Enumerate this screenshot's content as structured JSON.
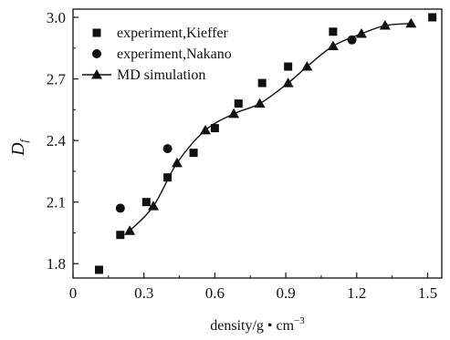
{
  "chart_data": {
    "type": "scatter",
    "xlabel": "density/g·cm⁻³",
    "xlabel_parts": {
      "main": "density/g • cm",
      "sup": "−3"
    },
    "ylabel": "Df",
    "ylabel_parts": {
      "main": "D",
      "sub": "f"
    },
    "xlim": [
      0,
      1.56
    ],
    "ylim": [
      1.73,
      3.04
    ],
    "xticks": [
      0,
      0.3,
      0.6,
      0.9,
      1.2,
      1.5
    ],
    "xtick_labels": [
      "0",
      "0.3",
      "0.6",
      "0.9",
      "1.2",
      "1.5"
    ],
    "yticks": [
      1.8,
      2.1,
      2.4,
      2.7,
      3.0
    ],
    "ytick_labels": [
      "1.8",
      "2.1",
      "2.4",
      "2.7",
      "3.0"
    ],
    "grid": false,
    "legend_position": "top-left",
    "series": [
      {
        "name": "experiment,Kieffer",
        "marker": "square",
        "line": false,
        "x": [
          0.11,
          0.2,
          0.31,
          0.4,
          0.51,
          0.6,
          0.7,
          0.8,
          0.91,
          1.1,
          1.52
        ],
        "y": [
          1.77,
          1.94,
          2.1,
          2.22,
          2.34,
          2.46,
          2.58,
          2.68,
          2.76,
          2.93,
          3.0
        ]
      },
      {
        "name": "experiment,Nakano",
        "marker": "circle",
        "line": false,
        "x": [
          0.2,
          0.4,
          1.18
        ],
        "y": [
          2.07,
          2.36,
          2.89
        ]
      },
      {
        "name": "MD simulation",
        "marker": "triangle",
        "line": true,
        "x": [
          0.24,
          0.34,
          0.44,
          0.56,
          0.68,
          0.79,
          0.91,
          0.99,
          1.1,
          1.22,
          1.32,
          1.43
        ],
        "y": [
          1.96,
          2.08,
          2.29,
          2.45,
          2.53,
          2.58,
          2.68,
          2.76,
          2.86,
          2.92,
          2.96,
          2.97
        ]
      }
    ]
  }
}
